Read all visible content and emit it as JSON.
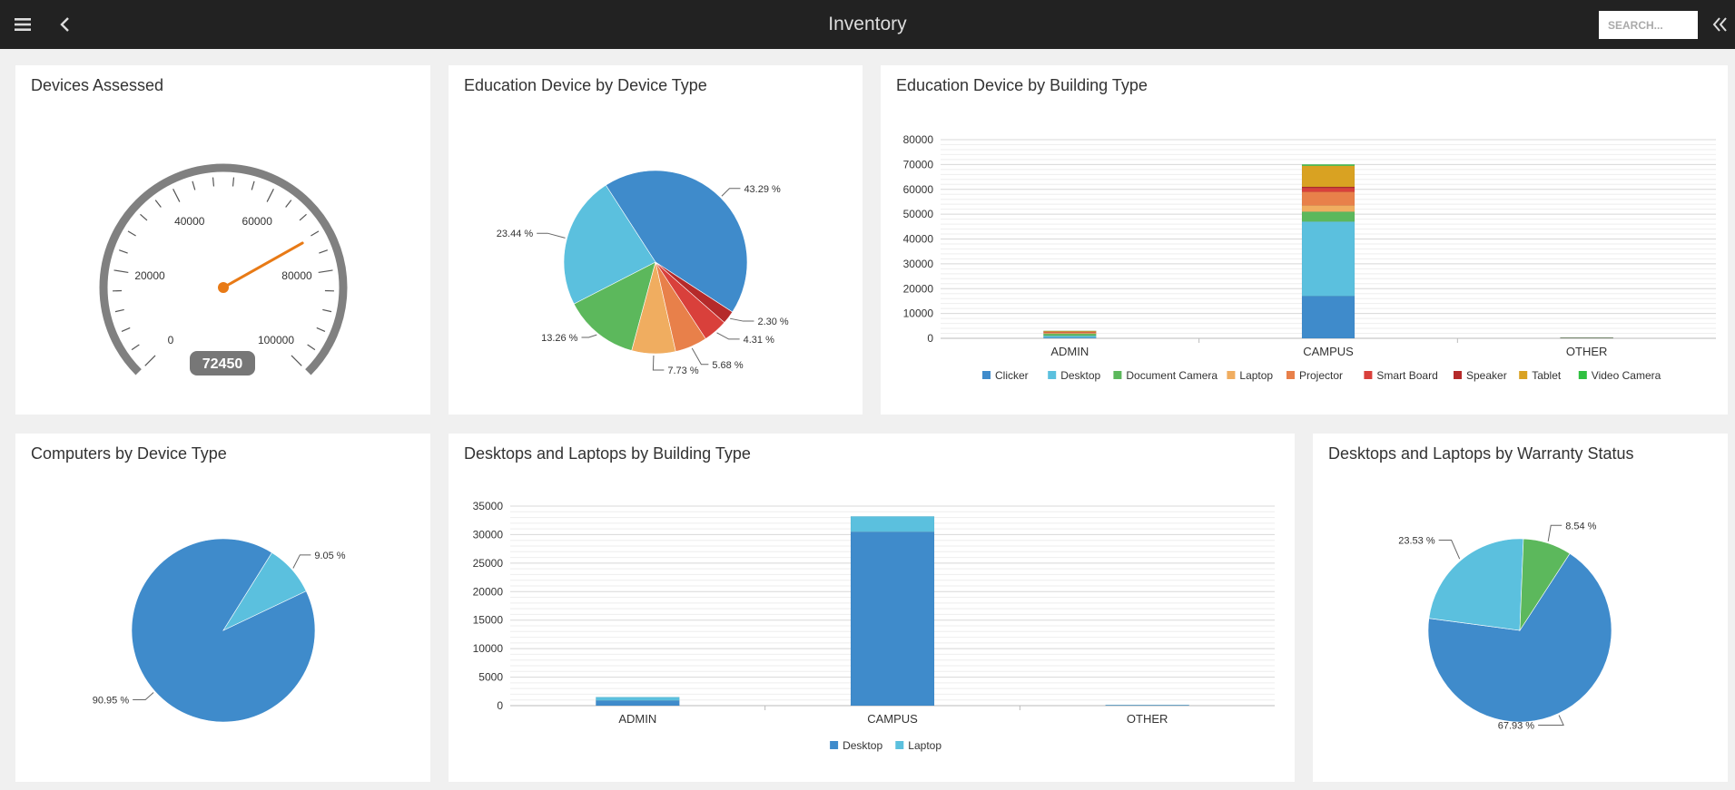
{
  "header": {
    "title": "Inventory",
    "search_placeholder": "SEARCH...",
    "icons": [
      "hamburger-menu-icon",
      "back-arrow-icon",
      "collapse-panel-icon"
    ]
  },
  "colors": {
    "blue": "#3f8bcb",
    "light_blue": "#5bc0de",
    "green": "#5cb85c",
    "laptop": "#f0ad60",
    "projector": "#e8804a",
    "smart_board": "#d9403b",
    "speaker": "#b52a2a",
    "tablet": "#d9a222",
    "video_camera": "#2fc040",
    "gauge_arc": "#808080",
    "gauge_needle": "#e87a16"
  },
  "panels": {
    "devices_assessed": {
      "title": "Devices Assessed",
      "gauge": {
        "value": 72450,
        "value_label": "72450",
        "min": 0,
        "max": 100000,
        "tick_labels": [
          "0",
          "20000",
          "40000",
          "60000",
          "80000",
          "100000"
        ]
      }
    },
    "edu_device_type": {
      "title": "Education Device by Device Type"
    },
    "edu_building_type": {
      "title": "Education Device by Building Type"
    },
    "computers_device_type": {
      "title": "Computers by Device Type"
    },
    "desktops_laptops_building": {
      "title": "Desktops and Laptops by Building Type"
    },
    "desktops_laptops_warranty": {
      "title": "Desktops and Laptops by Warranty Status"
    }
  },
  "chart_data": [
    {
      "id": "edu_device_type",
      "type": "pie",
      "title": "Education Device by Device Type",
      "slices": [
        {
          "label": "43.29 %",
          "value": 43.29,
          "color": "#3f8bcb"
        },
        {
          "label": "23.44 %",
          "value": 23.44,
          "color": "#5bc0de"
        },
        {
          "label": "13.26 %",
          "value": 13.26,
          "color": "#5cb85c"
        },
        {
          "label": "7.73 %",
          "value": 7.73,
          "color": "#f0ad60"
        },
        {
          "label": "5.68 %",
          "value": 5.68,
          "color": "#e8804a"
        },
        {
          "label": "4.31 %",
          "value": 4.31,
          "color": "#d9403b"
        },
        {
          "label": "2.30 %",
          "value": 2.3,
          "color": "#b52a2a"
        }
      ]
    },
    {
      "id": "edu_building_type",
      "type": "bar",
      "stacked": true,
      "title": "Education Device by Building Type",
      "categories": [
        "ADMIN",
        "CAMPUS",
        "OTHER"
      ],
      "ylim": [
        0,
        80000
      ],
      "yticks": [
        "0",
        "10000",
        "20000",
        "30000",
        "40000",
        "50000",
        "60000",
        "70000",
        "80000"
      ],
      "grid": true,
      "legend_position": "bottom",
      "series": [
        {
          "name": "Clicker",
          "color": "#3f8bcb",
          "values": [
            300,
            17000,
            40
          ]
        },
        {
          "name": "Desktop",
          "color": "#5bc0de",
          "values": [
            700,
            30000,
            100
          ]
        },
        {
          "name": "Document Camera",
          "color": "#5cb85c",
          "values": [
            800,
            4000,
            60
          ]
        },
        {
          "name": "Laptop",
          "color": "#f0ad60",
          "values": [
            300,
            2500,
            40
          ]
        },
        {
          "name": "Projector",
          "color": "#e8804a",
          "values": [
            300,
            5500,
            40
          ]
        },
        {
          "name": "Smart Board",
          "color": "#d9403b",
          "values": [
            200,
            1500,
            20
          ]
        },
        {
          "name": "Speaker",
          "color": "#b52a2a",
          "values": [
            50,
            500,
            10
          ]
        },
        {
          "name": "Tablet",
          "color": "#d9a222",
          "values": [
            300,
            8500,
            40
          ]
        },
        {
          "name": "Video Camera",
          "color": "#2fc040",
          "values": [
            50,
            500,
            10
          ]
        }
      ]
    },
    {
      "id": "computers_device_type",
      "type": "pie",
      "title": "Computers by Device Type",
      "slices": [
        {
          "label": "90.95 %",
          "value": 90.95,
          "color": "#3f8bcb"
        },
        {
          "label": "9.05 %",
          "value": 9.05,
          "color": "#5bc0de"
        }
      ]
    },
    {
      "id": "desktops_laptops_building",
      "type": "bar",
      "stacked": true,
      "title": "Desktops and Laptops by Building Type",
      "categories": [
        "ADMIN",
        "CAMPUS",
        "OTHER"
      ],
      "ylim": [
        0,
        35000
      ],
      "yticks": [
        "0",
        "5000",
        "10000",
        "15000",
        "20000",
        "25000",
        "30000",
        "35000"
      ],
      "grid": true,
      "legend_position": "bottom",
      "series": [
        {
          "name": "Desktop",
          "color": "#3f8bcb",
          "values": [
            900,
            30500,
            80
          ]
        },
        {
          "name": "Laptop",
          "color": "#5bc0de",
          "values": [
            600,
            2700,
            40
          ]
        }
      ]
    },
    {
      "id": "desktops_laptops_warranty",
      "type": "pie",
      "title": "Desktops and Laptops by Warranty Status",
      "slices": [
        {
          "label": "67.93 %",
          "value": 67.93,
          "color": "#3f8bcb"
        },
        {
          "label": "23.53 %",
          "value": 23.53,
          "color": "#5bc0de"
        },
        {
          "label": "8.54 %",
          "value": 8.54,
          "color": "#5cb85c"
        }
      ]
    }
  ]
}
